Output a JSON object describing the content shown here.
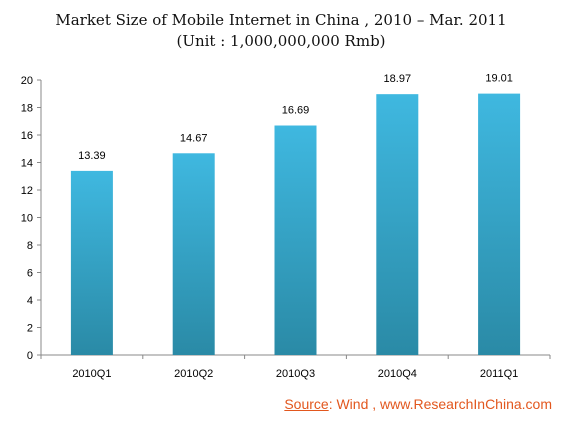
{
  "chart_data": {
    "type": "bar",
    "title": "Market Size of Mobile Internet in China , 2010 – Mar. 2011",
    "subtitle": "(Unit : 1,000,000,000 Rmb)",
    "categories": [
      "2010Q1",
      "2010Q2",
      "2010Q3",
      "2010Q4",
      "2011Q1"
    ],
    "values": [
      13.39,
      14.67,
      16.69,
      18.97,
      19.01
    ],
    "value_labels": [
      "13.39",
      "14.67",
      "16.69",
      "18.97",
      "19.01"
    ],
    "ylim": [
      0,
      20
    ],
    "yticks": [
      "0",
      "2",
      "4",
      "6",
      "8",
      "10",
      "12",
      "14",
      "16",
      "18",
      "20"
    ],
    "grid": false,
    "legend": "none",
    "bar_color_top": "#3fb8e0",
    "bar_color_bottom": "#2a8aa6"
  },
  "source": {
    "label": "Source",
    "text": ": Wind , www.ResearchInChina.com",
    "color": "#e2571e"
  }
}
